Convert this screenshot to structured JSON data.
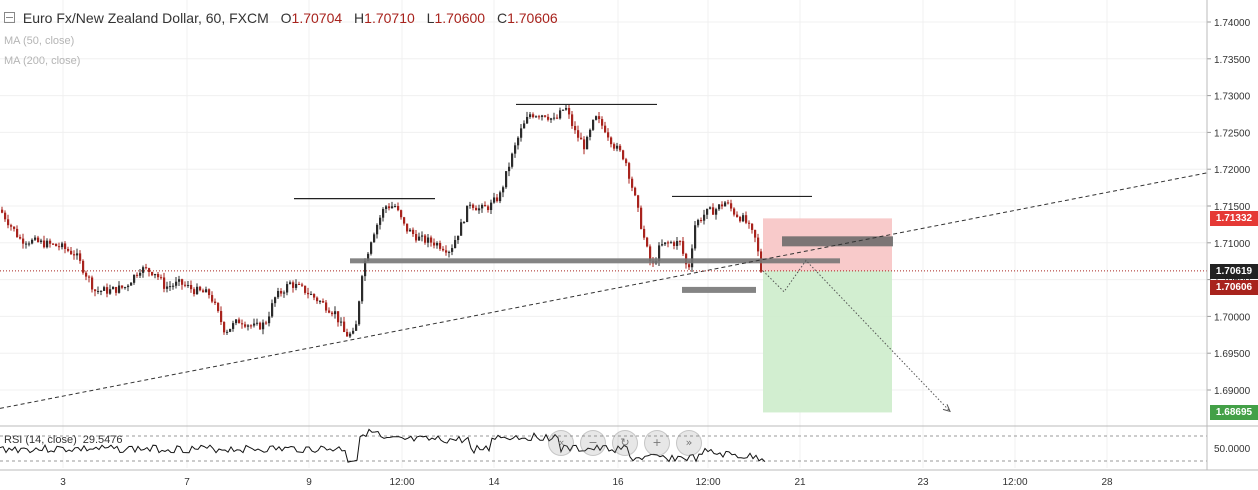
{
  "header": {
    "symbol": "Euro Fx/New Zealand Dollar, 60, FXCM",
    "o_label": "O",
    "o_value": "1.70704",
    "h_label": "H",
    "h_value": "1.70710",
    "l_label": "L",
    "l_value": "1.70600",
    "c_label": "C",
    "c_value": "1.70606",
    "ma1": "MA (50, close)",
    "ma2": "MA (200, close)"
  },
  "rsi": {
    "label": "RSI (14, close)",
    "value": "29.5476"
  },
  "badges": {
    "stop_price": "1.71332",
    "entry_price": "1.70619",
    "last_price": "1.70606",
    "target_price": "1.68695"
  },
  "colors": {
    "up": "#2b2b2b",
    "down": "#a8231d",
    "stop_zone": "#f7c4c4",
    "target_zone": "#cdeccb",
    "stop_badge": "#e53935",
    "last_badge": "#a8231d",
    "target_badge": "#43a047",
    "entry_badge": "#222222"
  },
  "nav_icons": [
    "scroll-back-icon",
    "zoom-out-icon",
    "reset-icon",
    "zoom-in-icon",
    "scroll-forward-icon"
  ],
  "chart_data": {
    "type": "candlestick",
    "title": "Euro Fx/New Zealand Dollar, 60, FXCM",
    "x_ticks": [
      "3",
      "7",
      "9",
      "12:00",
      "14",
      "16",
      "12:00",
      "21",
      "23",
      "12:00",
      "28"
    ],
    "y_ticks": [
      "1.74000",
      "1.73500",
      "1.73000",
      "1.72500",
      "1.72000",
      "1.71500",
      "1.71000",
      "1.70500",
      "1.70000",
      "1.69500",
      "1.69000"
    ],
    "rsi_ticks": [
      "50.0000"
    ],
    "ylim": [
      1.6865,
      1.7418
    ],
    "price_path": [
      [
        0,
        1.7145
      ],
      [
        20,
        1.7105
      ],
      [
        40,
        1.71
      ],
      [
        60,
        1.7095
      ],
      [
        75,
        1.7085
      ],
      [
        85,
        1.706
      ],
      [
        95,
        1.7035
      ],
      [
        110,
        1.7035
      ],
      [
        125,
        1.704
      ],
      [
        140,
        1.7065
      ],
      [
        155,
        1.706
      ],
      [
        165,
        1.704
      ],
      [
        180,
        1.7045
      ],
      [
        195,
        1.7035
      ],
      [
        210,
        1.703
      ],
      [
        225,
        1.698
      ],
      [
        240,
        1.6995
      ],
      [
        255,
        1.6985
      ],
      [
        265,
        1.699
      ],
      [
        275,
        1.7025
      ],
      [
        290,
        1.7045
      ],
      [
        305,
        1.7035
      ],
      [
        320,
        1.702
      ],
      [
        335,
        1.7005
      ],
      [
        345,
        1.6975
      ],
      [
        355,
        1.6975
      ],
      [
        362,
        1.706
      ],
      [
        372,
        1.711
      ],
      [
        385,
        1.715
      ],
      [
        395,
        1.715
      ],
      [
        405,
        1.712
      ],
      [
        420,
        1.7105
      ],
      [
        435,
        1.71
      ],
      [
        450,
        1.709
      ],
      [
        460,
        1.712
      ],
      [
        470,
        1.7155
      ],
      [
        480,
        1.7145
      ],
      [
        490,
        1.715
      ],
      [
        500,
        1.7165
      ],
      [
        510,
        1.721
      ],
      [
        520,
        1.725
      ],
      [
        530,
        1.7275
      ],
      [
        545,
        1.7275
      ],
      [
        555,
        1.7265
      ],
      [
        565,
        1.7285
      ],
      [
        575,
        1.725
      ],
      [
        585,
        1.723
      ],
      [
        595,
        1.727
      ],
      [
        605,
        1.7255
      ],
      [
        615,
        1.723
      ],
      [
        625,
        1.7215
      ],
      [
        635,
        1.716
      ],
      [
        645,
        1.71
      ],
      [
        652,
        1.7065
      ],
      [
        660,
        1.7095
      ],
      [
        670,
        1.71
      ],
      [
        680,
        1.71
      ],
      [
        688,
        1.706
      ],
      [
        695,
        1.7125
      ],
      [
        705,
        1.714
      ],
      [
        715,
        1.7145
      ],
      [
        725,
        1.7155
      ],
      [
        735,
        1.714
      ],
      [
        745,
        1.713
      ],
      [
        755,
        1.7105
      ],
      [
        762,
        1.7061
      ]
    ],
    "annotations": {
      "horizontal_lines": [
        {
          "x": [
            294,
            435
          ],
          "y": 1.716
        },
        {
          "x": [
            516,
            657
          ],
          "y": 1.7288
        },
        {
          "x": [
            672,
            812
          ],
          "y": 1.7163
        }
      ],
      "support_zone": {
        "x": [
          350,
          840
        ],
        "y": 1.70755
      },
      "small_zones": [
        {
          "x": [
            782,
            893
          ],
          "y": 1.7102
        },
        {
          "x": [
            682,
            756
          ],
          "y": 1.7036
        }
      ],
      "trendline": {
        "from": [
          0,
          1.6875
        ],
        "to": [
          1207,
          1.7195
        ]
      },
      "price_line": 1.70619,
      "projection_path": [
        [
          763,
          1.70619
        ],
        [
          784,
          1.70335
        ],
        [
          806,
          1.7076
        ],
        [
          950,
          1.6871
        ]
      ],
      "position": {
        "x": [
          763,
          892
        ],
        "stop": 1.71332,
        "entry": 1.70619,
        "target": 1.68695
      }
    },
    "rsi_series_level": 50
  }
}
